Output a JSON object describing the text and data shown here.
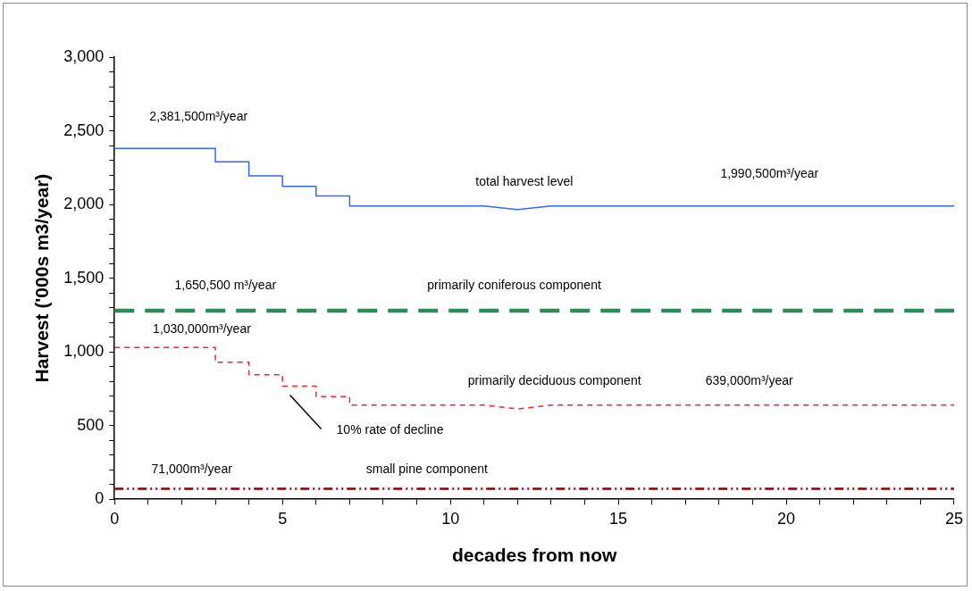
{
  "chart_data": {
    "type": "line",
    "xlabel": "decades from now",
    "ylabel": "Harvest ('000s m3/year)",
    "series": [
      {
        "color": "#3366ff",
        "line_style": "solid",
        "x": [
          0,
          3,
          3,
          4,
          4,
          5,
          5,
          6,
          6,
          7,
          7,
          11,
          12,
          13,
          25
        ],
        "values": [
          2381,
          2381,
          2290,
          2290,
          2194,
          2194,
          2123,
          2123,
          2058,
          2058,
          1990,
          1990,
          1965,
          1990,
          1990
        ]
      },
      {
        "color": "#2e8b57",
        "line_style": "dashed",
        "x": [
          0,
          25
        ],
        "values": [
          1280,
          1280
        ]
      },
      {
        "color": "#ff2222",
        "line_style": "dashed",
        "x": [
          0,
          3,
          3,
          4,
          4,
          5,
          5,
          6,
          6,
          7,
          7,
          11,
          12,
          13,
          25
        ],
        "values": [
          1030,
          1030,
          929,
          929,
          845,
          845,
          768,
          768,
          697,
          697,
          639,
          639,
          613,
          639,
          639
        ]
      },
      {
        "color": "#8b0000",
        "line_style": "dashdot",
        "x": [
          0,
          25
        ],
        "values": [
          71,
          71
        ]
      }
    ],
    "annotations": [
      "2,381,500m³/year",
      "total harvest level",
      "1,990,500m³/year",
      "1,650,500 m³/year",
      "primarily coniferous component",
      "1,030,000m³/year",
      "primarily deciduous component",
      "639,000m³/year",
      "10% rate of decline",
      "71,000m³/year",
      "small pine component"
    ],
    "xlim": [
      0,
      25
    ],
    "xticks": [
      0,
      {
        "value": 1,
        "label": null
      },
      {
        "value": 2,
        "label": null
      },
      {
        "value": 3,
        "label": null
      },
      {
        "value": 4,
        "label": null
      },
      5,
      {
        "value": 6,
        "label": null
      },
      {
        "value": 7,
        "label": null
      },
      {
        "value": 8,
        "label": null
      },
      {
        "value": 9,
        "label": null
      },
      10,
      {
        "value": 11,
        "label": null
      },
      {
        "value": 12,
        "label": null
      },
      {
        "value": 13,
        "label": null
      },
      {
        "value": 14,
        "label": null
      },
      15,
      {
        "value": 16,
        "label": null
      },
      {
        "value": 17,
        "label": null
      },
      {
        "value": 18,
        "label": null
      },
      {
        "value": 19,
        "label": null
      },
      20,
      {
        "value": 21,
        "label": null
      },
      {
        "value": 22,
        "label": null
      },
      {
        "value": 23,
        "label": null
      },
      {
        "value": 24,
        "label": null
      },
      25
    ],
    "ylim": [
      0,
      3000
    ],
    "yticks": [
      0,
      {
        "value": 100,
        "label": null
      },
      {
        "value": 200,
        "label": null
      },
      {
        "value": 300,
        "label": null
      },
      {
        "value": 400,
        "label": null
      },
      500,
      {
        "value": 600,
        "label": null
      },
      {
        "value": 700,
        "label": null
      },
      {
        "value": 800,
        "label": null
      },
      {
        "value": 900,
        "label": null
      },
      {
        "value": 1000,
        "label": "1,000"
      },
      {
        "value": 1100,
        "label": null
      },
      {
        "value": 1200,
        "label": null
      },
      {
        "value": 1300,
        "label": null
      },
      {
        "value": 1400,
        "label": null
      },
      {
        "value": 1500,
        "label": "1,500"
      },
      {
        "value": 1600,
        "label": null
      },
      {
        "value": 1700,
        "label": null
      },
      {
        "value": 1800,
        "label": null
      },
      {
        "value": 1900,
        "label": null
      },
      {
        "value": 2000,
        "label": "2,000"
      },
      {
        "value": 2100,
        "label": null
      },
      {
        "value": 2200,
        "label": null
      },
      {
        "value": 2300,
        "label": null
      },
      {
        "value": 2400,
        "label": null
      },
      {
        "value": 2500,
        "label": "2,500"
      },
      {
        "value": 2600,
        "label": null
      },
      {
        "value": 2700,
        "label": null
      },
      {
        "value": 2800,
        "label": null
      },
      {
        "value": 2900,
        "label": null
      },
      {
        "value": 3000,
        "label": "3,000"
      }
    ],
    "grid": false,
    "legend": false,
    "marker": "none"
  }
}
